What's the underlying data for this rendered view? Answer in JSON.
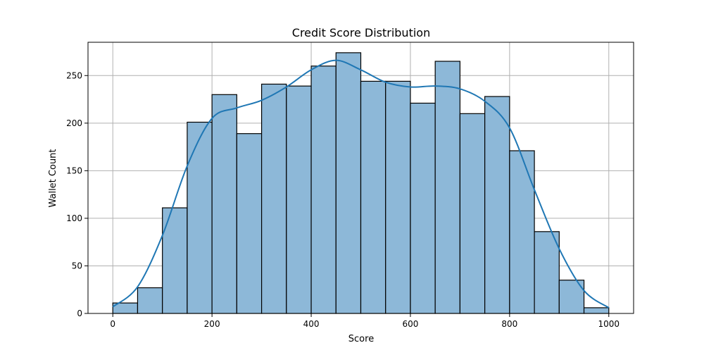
{
  "chart_data": {
    "type": "histogram",
    "title": "Credit Score Distribution",
    "xlabel": "Score",
    "ylabel": "Wallet Count",
    "xlim": [
      -50,
      1050
    ],
    "ylim": [
      0,
      285
    ],
    "bin_width": 50,
    "bins": [
      {
        "start": 0,
        "end": 50,
        "count": 11
      },
      {
        "start": 50,
        "end": 100,
        "count": 27
      },
      {
        "start": 100,
        "end": 150,
        "count": 111
      },
      {
        "start": 150,
        "end": 200,
        "count": 201
      },
      {
        "start": 200,
        "end": 250,
        "count": 230
      },
      {
        "start": 250,
        "end": 300,
        "count": 189
      },
      {
        "start": 300,
        "end": 350,
        "count": 241
      },
      {
        "start": 350,
        "end": 400,
        "count": 239
      },
      {
        "start": 400,
        "end": 450,
        "count": 260
      },
      {
        "start": 450,
        "end": 500,
        "count": 274
      },
      {
        "start": 500,
        "end": 550,
        "count": 244
      },
      {
        "start": 550,
        "end": 600,
        "count": 244
      },
      {
        "start": 600,
        "end": 650,
        "count": 221
      },
      {
        "start": 650,
        "end": 700,
        "count": 265
      },
      {
        "start": 700,
        "end": 750,
        "count": 210
      },
      {
        "start": 750,
        "end": 800,
        "count": 228
      },
      {
        "start": 800,
        "end": 850,
        "count": 171
      },
      {
        "start": 850,
        "end": 900,
        "count": 86
      },
      {
        "start": 900,
        "end": 950,
        "count": 35
      },
      {
        "start": 950,
        "end": 1000,
        "count": 6
      }
    ],
    "kde_curve": {
      "x": [
        0,
        50,
        100,
        150,
        200,
        250,
        300,
        350,
        400,
        450,
        500,
        550,
        600,
        650,
        700,
        750,
        800,
        850,
        900,
        950,
        1000
      ],
      "y": [
        7,
        28,
        82,
        155,
        205,
        216,
        224,
        238,
        256,
        266,
        256,
        243,
        238,
        239,
        236,
        223,
        195,
        130,
        68,
        24,
        6
      ]
    },
    "x_ticks": [
      0,
      200,
      400,
      600,
      800,
      1000
    ],
    "y_ticks": [
      0,
      50,
      100,
      150,
      200,
      250
    ],
    "grid": true,
    "colors": {
      "bar_fill": "#8db8d8",
      "bar_edge": "#000000",
      "kde_line": "#1f77b4",
      "grid": "#b0b0b0"
    }
  }
}
